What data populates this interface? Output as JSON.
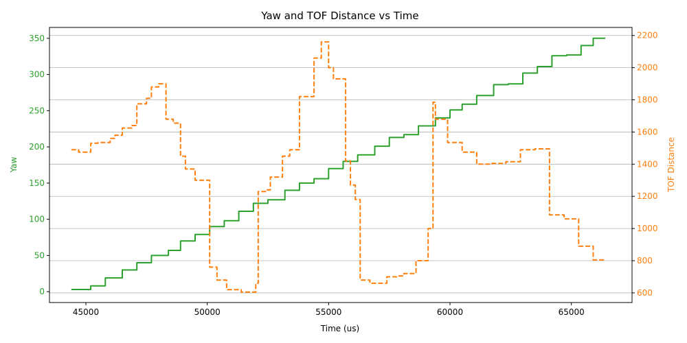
{
  "chart_data": {
    "type": "line",
    "title": "Yaw and TOF Distance vs Time",
    "xlabel": "Time (us)",
    "ylabel_left": "Yaw",
    "ylabel_right": "TOF Distance",
    "xlim": [
      43500,
      67500
    ],
    "ylim_left": [
      -15,
      365
    ],
    "ylim_right": [
      540,
      2250
    ],
    "x_ticks": [
      45000,
      50000,
      55000,
      60000,
      65000
    ],
    "y_ticks_left": [
      0,
      50,
      100,
      150,
      200,
      250,
      300,
      350
    ],
    "y_ticks_right": [
      600,
      800,
      1000,
      1200,
      1400,
      1600,
      1800,
      2000,
      2200
    ],
    "grid": "horizontal, right axis",
    "colors": {
      "yaw": "#2ca02c",
      "tof": "#ff7f0e"
    },
    "series": [
      {
        "axis": "left",
        "style": "solid",
        "points": [
          [
            44400,
            3
          ],
          [
            45200,
            3
          ],
          [
            45200,
            8
          ],
          [
            45800,
            8
          ],
          [
            45800,
            19
          ],
          [
            46500,
            19
          ],
          [
            46500,
            30
          ],
          [
            47100,
            30
          ],
          [
            47100,
            40
          ],
          [
            47700,
            40
          ],
          [
            47700,
            50
          ],
          [
            48400,
            50
          ],
          [
            48400,
            57
          ],
          [
            48900,
            57
          ],
          [
            48900,
            70
          ],
          [
            49500,
            70
          ],
          [
            49500,
            79
          ],
          [
            50100,
            79
          ],
          [
            50100,
            90
          ],
          [
            50700,
            90
          ],
          [
            50700,
            98
          ],
          [
            51300,
            98
          ],
          [
            51300,
            111
          ],
          [
            51900,
            111
          ],
          [
            51900,
            122
          ],
          [
            52500,
            122
          ],
          [
            52500,
            127
          ],
          [
            53200,
            127
          ],
          [
            53200,
            140
          ],
          [
            53800,
            140
          ],
          [
            53800,
            150
          ],
          [
            54400,
            150
          ],
          [
            54400,
            156
          ],
          [
            55000,
            156
          ],
          [
            55000,
            170
          ],
          [
            55600,
            170
          ],
          [
            55600,
            180
          ],
          [
            56200,
            180
          ],
          [
            56200,
            189
          ],
          [
            56900,
            189
          ],
          [
            56900,
            201
          ],
          [
            57500,
            201
          ],
          [
            57500,
            213
          ],
          [
            58100,
            213
          ],
          [
            58100,
            217
          ],
          [
            58700,
            217
          ],
          [
            58700,
            229
          ],
          [
            59400,
            229
          ],
          [
            59400,
            240
          ],
          [
            60000,
            240
          ],
          [
            60000,
            251
          ],
          [
            60500,
            251
          ],
          [
            60500,
            259
          ],
          [
            61100,
            259
          ],
          [
            61100,
            271
          ],
          [
            61800,
            271
          ],
          [
            61800,
            286
          ],
          [
            62400,
            286
          ],
          [
            62400,
            287
          ],
          [
            63000,
            287
          ],
          [
            63000,
            302
          ],
          [
            63600,
            302
          ],
          [
            63600,
            311
          ],
          [
            64200,
            311
          ],
          [
            64200,
            326
          ],
          [
            64800,
            326
          ],
          [
            64800,
            327
          ],
          [
            65400,
            327
          ],
          [
            65400,
            340
          ],
          [
            65900,
            340
          ],
          [
            65900,
            350
          ],
          [
            66400,
            350
          ]
        ]
      },
      {
        "axis": "right",
        "style": "dashed",
        "points": [
          [
            44400,
            1490
          ],
          [
            44700,
            1490
          ],
          [
            44700,
            1475
          ],
          [
            45200,
            1475
          ],
          [
            45200,
            1530
          ],
          [
            45500,
            1530
          ],
          [
            45500,
            1535
          ],
          [
            46000,
            1535
          ],
          [
            46000,
            1560
          ],
          [
            46200,
            1560
          ],
          [
            46200,
            1580
          ],
          [
            46500,
            1580
          ],
          [
            46500,
            1625
          ],
          [
            46900,
            1625
          ],
          [
            46900,
            1640
          ],
          [
            47100,
            1640
          ],
          [
            47100,
            1775
          ],
          [
            47500,
            1775
          ],
          [
            47500,
            1810
          ],
          [
            47700,
            1810
          ],
          [
            47700,
            1880
          ],
          [
            48000,
            1880
          ],
          [
            48000,
            1900
          ],
          [
            48300,
            1900
          ],
          [
            48300,
            1680
          ],
          [
            48600,
            1680
          ],
          [
            48600,
            1655
          ],
          [
            48900,
            1655
          ],
          [
            48900,
            1450
          ],
          [
            49100,
            1450
          ],
          [
            49100,
            1370
          ],
          [
            49500,
            1370
          ],
          [
            49500,
            1300
          ],
          [
            50100,
            1300
          ],
          [
            50100,
            760
          ],
          [
            50400,
            760
          ],
          [
            50400,
            680
          ],
          [
            50800,
            680
          ],
          [
            50800,
            620
          ],
          [
            51400,
            620
          ],
          [
            51400,
            605
          ],
          [
            52000,
            605
          ],
          [
            52000,
            660
          ],
          [
            52100,
            660
          ],
          [
            52100,
            1230
          ],
          [
            52400,
            1230
          ],
          [
            52400,
            1240
          ],
          [
            52600,
            1240
          ],
          [
            52600,
            1320
          ],
          [
            53100,
            1320
          ],
          [
            53100,
            1450
          ],
          [
            53400,
            1450
          ],
          [
            53400,
            1490
          ],
          [
            53800,
            1490
          ],
          [
            53800,
            1820
          ],
          [
            54400,
            1820
          ],
          [
            54400,
            2060
          ],
          [
            54700,
            2060
          ],
          [
            54700,
            2160
          ],
          [
            55000,
            2160
          ],
          [
            55000,
            2000
          ],
          [
            55200,
            2000
          ],
          [
            55200,
            1930
          ],
          [
            55700,
            1930
          ],
          [
            55700,
            1420
          ],
          [
            55900,
            1420
          ],
          [
            55900,
            1270
          ],
          [
            56100,
            1270
          ],
          [
            56100,
            1180
          ],
          [
            56300,
            1180
          ],
          [
            56300,
            680
          ],
          [
            56700,
            680
          ],
          [
            56700,
            660
          ],
          [
            57400,
            660
          ],
          [
            57400,
            700
          ],
          [
            57800,
            700
          ],
          [
            57800,
            705
          ],
          [
            58100,
            705
          ],
          [
            58100,
            720
          ],
          [
            58600,
            720
          ],
          [
            58600,
            800
          ],
          [
            59100,
            800
          ],
          [
            59100,
            1000
          ],
          [
            59300,
            1000
          ],
          [
            59300,
            1785
          ],
          [
            59400,
            1785
          ],
          [
            59400,
            1680
          ],
          [
            59900,
            1680
          ],
          [
            59900,
            1535
          ],
          [
            60500,
            1535
          ],
          [
            60500,
            1475
          ],
          [
            61100,
            1475
          ],
          [
            61100,
            1400
          ],
          [
            61700,
            1400
          ],
          [
            61700,
            1405
          ],
          [
            62300,
            1405
          ],
          [
            62300,
            1415
          ],
          [
            62900,
            1415
          ],
          [
            62900,
            1490
          ],
          [
            63500,
            1490
          ],
          [
            63500,
            1495
          ],
          [
            64100,
            1495
          ],
          [
            64100,
            1085
          ],
          [
            64700,
            1085
          ],
          [
            64700,
            1060
          ],
          [
            65300,
            1060
          ],
          [
            65300,
            890
          ],
          [
            65900,
            890
          ],
          [
            65900,
            805
          ],
          [
            66400,
            805
          ]
        ]
      }
    ]
  }
}
